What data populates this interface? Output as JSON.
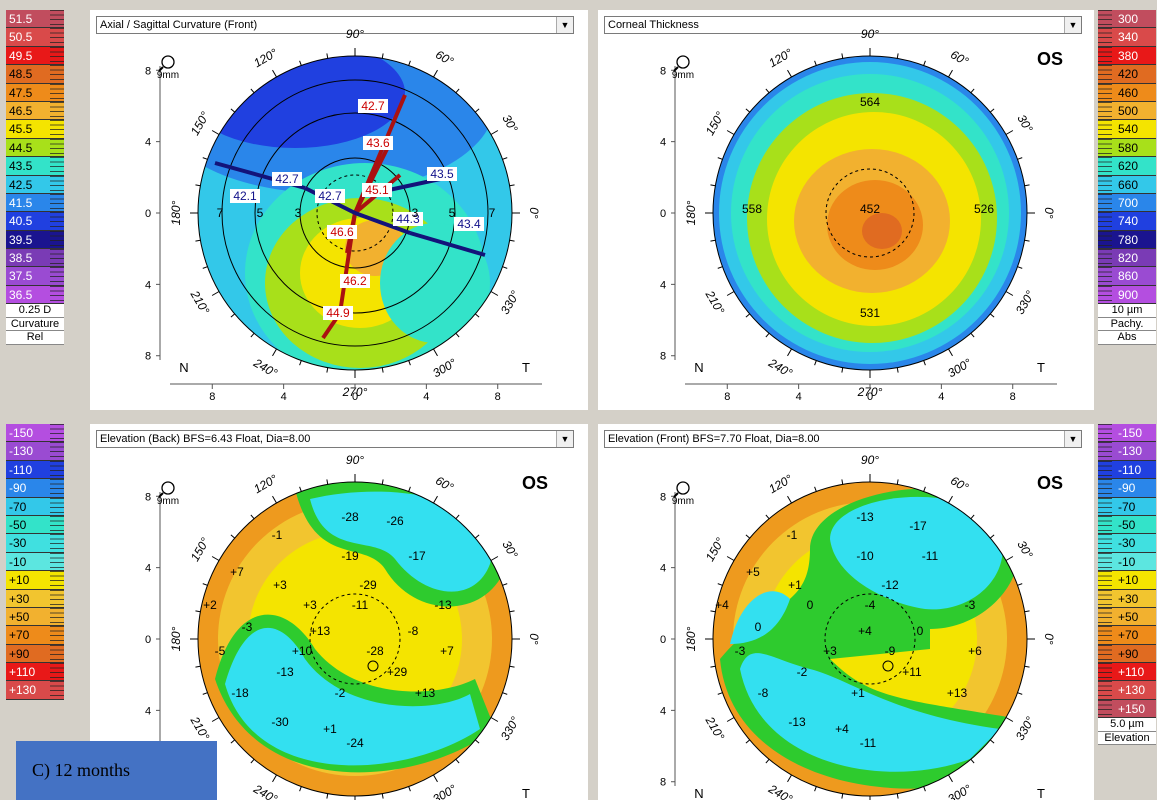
{
  "panels": {
    "top_left": {
      "title": "Axial / Sagittal Curvature (Front)",
      "eye": ""
    },
    "top_right": {
      "title": "Corneal Thickness",
      "eye": "OS"
    },
    "bottom_left": {
      "title": "Elevation (Back)  BFS=6.43 Float, Dia=8.00",
      "eye": "OS"
    },
    "bottom_right": {
      "title": "Elevation (Front)  BFS=7.70 Float, Dia=8.00",
      "eye": "OS"
    }
  },
  "map_common": {
    "zoom_label": "9mm",
    "angle_labels": [
      "90°",
      "60°",
      "30°",
      "0°",
      "330°",
      "300°",
      "270°",
      "240°",
      "210°",
      "180°",
      "150°",
      "120°"
    ],
    "nasal": "N",
    "temporal": "T",
    "axis_ticks": [
      "8",
      "4",
      "0",
      "4",
      "8"
    ]
  },
  "legend_curvature": {
    "values": [
      "51.5",
      "50.5",
      "49.5",
      "48.5",
      "47.5",
      "46.5",
      "45.5",
      "44.5",
      "43.5",
      "42.5",
      "41.5",
      "40.5",
      "39.5",
      "38.5",
      "37.5",
      "36.5"
    ],
    "colors": [
      "#c14d5e",
      "#d94a4a",
      "#e81818",
      "#e06b21",
      "#ee8b1a",
      "#f2b12f",
      "#f4e400",
      "#a8e01a",
      "#33e3c9",
      "#33c8e9",
      "#2a86ea",
      "#2040e0",
      "#1a148f",
      "#7a3bb5",
      "#9a4bd2",
      "#b44ee0"
    ],
    "step": "0.25 D",
    "type": "Curvature",
    "mode": "Rel"
  },
  "legend_pachy": {
    "values": [
      "300",
      "340",
      "380",
      "420",
      "460",
      "500",
      "540",
      "580",
      "620",
      "660",
      "700",
      "740",
      "780",
      "820",
      "860",
      "900"
    ],
    "colors": [
      "#c14d5e",
      "#d94a4a",
      "#e81818",
      "#e06b21",
      "#ee8b1a",
      "#f2b12f",
      "#f4e400",
      "#a8e01a",
      "#33e3c9",
      "#33c8e9",
      "#2a86ea",
      "#2040e0",
      "#1a148f",
      "#7a3bb5",
      "#9a4bd2",
      "#b44ee0"
    ],
    "step": "10 µm",
    "type": "Pachy.",
    "mode": "Abs"
  },
  "legend_elev_back": {
    "values": [
      "-150",
      "-130",
      "-110",
      "-90",
      "-70",
      "-50",
      "-30",
      "-10",
      "+10",
      "+30",
      "+50",
      "+70",
      "+90",
      "+110",
      "+130"
    ],
    "colors": [
      "#b44ee0",
      "#9a4bd2",
      "#2040e0",
      "#2a86ea",
      "#33c8e9",
      "#33e3c9",
      "#40e0e0",
      "#5ce6e0",
      "#f4e400",
      "#f2c52f",
      "#f2b12f",
      "#ee8b1a",
      "#e06b21",
      "#e81818",
      "#d94a4a"
    ]
  },
  "legend_elev_front": {
    "values": [
      "-150",
      "-130",
      "-110",
      "-90",
      "-70",
      "-50",
      "-30",
      "-10",
      "+10",
      "+30",
      "+50",
      "+70",
      "+90",
      "+110",
      "+130",
      "+150"
    ],
    "colors": [
      "#b44ee0",
      "#9a4bd2",
      "#2040e0",
      "#2a86ea",
      "#33c8e9",
      "#33e3c9",
      "#40e0e0",
      "#5ce6e0",
      "#f4e400",
      "#f2c52f",
      "#f2b12f",
      "#ee8b1a",
      "#e06b21",
      "#e81818",
      "#d94a4a",
      "#c14d5e"
    ],
    "step": "5.0 µm",
    "type": "Elevation"
  },
  "axial_values": {
    "red": [
      "42.7",
      "43.6",
      "45.1",
      "46.6",
      "46.2",
      "44.9"
    ],
    "blue": [
      "42.7",
      "42.1",
      "42.7",
      "43.5",
      "44.3",
      "43.4"
    ],
    "ring_labels": [
      "7",
      "5",
      "3",
      "3",
      "5",
      "7"
    ]
  },
  "thickness_values": [
    "564",
    "558",
    "452",
    "526",
    "531"
  ],
  "elev_back_values": [
    "-28",
    "-26",
    "-1",
    "-19",
    "-17",
    "+7",
    "+3",
    "-29",
    "+2",
    "+3",
    "-11",
    "-13",
    "-3",
    "+13",
    "-8",
    "-5",
    "+10",
    "-28",
    "+7",
    "-13",
    "+29",
    "-18",
    "-2",
    "+13",
    "-30",
    "+1",
    "-24"
  ],
  "elev_front_values": [
    "-13",
    "-17",
    "-1",
    "-10",
    "-11",
    "+5",
    "+1",
    "-12",
    "+4",
    "0",
    "-4",
    "-3",
    "0",
    "+4",
    "0",
    "-3",
    "+3",
    "-9",
    "+6",
    "-2",
    "+11",
    "-8",
    "+1",
    "+13",
    "-13",
    "+4",
    "-11"
  ],
  "caption": "C) 12 months"
}
